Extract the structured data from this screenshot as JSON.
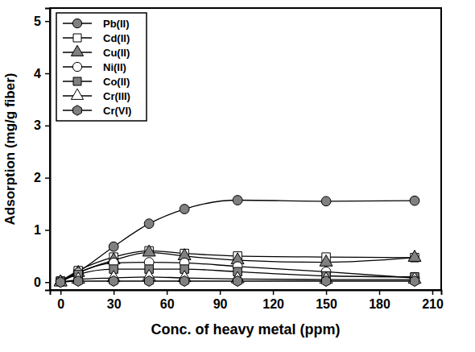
{
  "chart_data": {
    "type": "line",
    "x_label": "Conc. of heavy metal (ppm)",
    "y_label": "Adsorption (mg/g fiber)",
    "x": [
      0,
      10,
      30,
      50,
      70,
      100,
      150,
      200
    ],
    "xlim": [
      -6,
      215
    ],
    "xticks": [
      0,
      30,
      60,
      90,
      120,
      150,
      180,
      210
    ],
    "ylim": [
      -0.15,
      5.25
    ],
    "yticks": [
      0,
      1,
      2,
      3,
      4,
      5
    ],
    "legend": "top-left",
    "series": [
      {
        "name": "Pb(II)",
        "color": "#808080",
        "marker": "circle",
        "values": [
          0.02,
          0.2,
          0.68,
          1.12,
          1.4,
          1.57,
          1.55,
          1.56
        ]
      },
      {
        "name": "Cd(II)",
        "color": "#ffffff",
        "marker": "square",
        "values": [
          0.02,
          0.22,
          0.48,
          0.6,
          0.55,
          0.5,
          0.48,
          0.47
        ]
      },
      {
        "name": "Cu(II)",
        "color": "#808080",
        "marker": "triangle",
        "values": [
          0.0,
          0.18,
          0.42,
          0.57,
          0.5,
          0.42,
          0.38,
          0.47
        ]
      },
      {
        "name": "Ni(II)",
        "color": "#ffffff",
        "marker": "circle",
        "values": [
          0.02,
          0.18,
          0.37,
          0.38,
          0.37,
          0.3,
          0.2,
          0.08
        ]
      },
      {
        "name": "Co(II)",
        "color": "#808080",
        "marker": "square",
        "values": [
          0.02,
          0.15,
          0.25,
          0.25,
          0.25,
          0.2,
          0.12,
          0.1
        ]
      },
      {
        "name": "Cr(III)",
        "color": "#ffffff",
        "marker": "triangle",
        "values": [
          0.0,
          0.05,
          0.08,
          0.1,
          0.08,
          0.06,
          0.05,
          0.05
        ]
      },
      {
        "name": "Cr(VI)",
        "color": "#808080",
        "marker": "hexagon",
        "values": [
          0.0,
          0.02,
          0.02,
          0.02,
          0.02,
          0.02,
          0.02,
          0.02
        ]
      }
    ]
  }
}
